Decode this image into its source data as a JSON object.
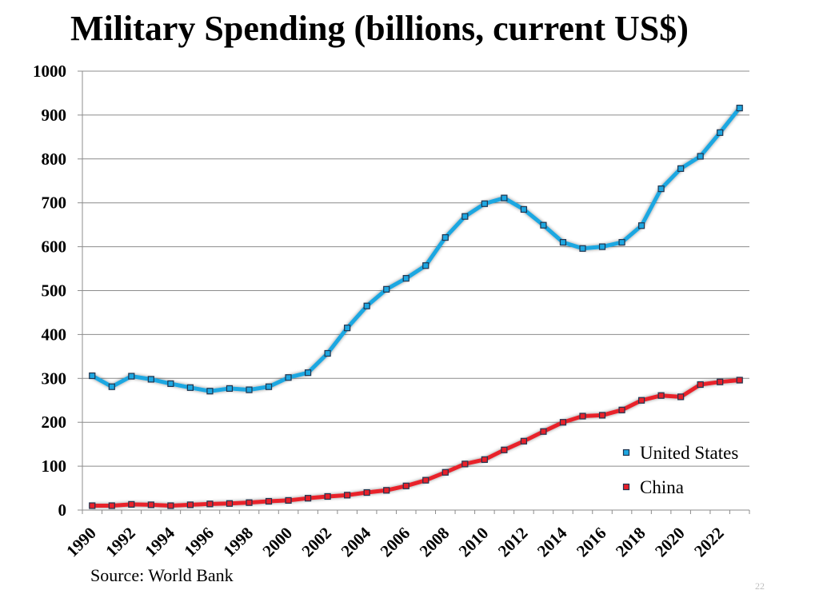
{
  "page_number": "22",
  "source": "Source: World Bank",
  "chart_data": {
    "type": "line",
    "title": "Military Spending (billions, current US$)",
    "xlabel": "",
    "ylabel": "",
    "ylim": [
      0,
      1000
    ],
    "yticks": [
      0,
      100,
      200,
      300,
      400,
      500,
      600,
      700,
      800,
      900,
      1000
    ],
    "grid": true,
    "legend_position": "bottom-right",
    "x": [
      1990,
      1991,
      1992,
      1993,
      1994,
      1995,
      1996,
      1997,
      1998,
      1999,
      2000,
      2001,
      2002,
      2003,
      2004,
      2005,
      2006,
      2007,
      2008,
      2009,
      2010,
      2011,
      2012,
      2013,
      2014,
      2015,
      2016,
      2017,
      2018,
      2019,
      2020,
      2021,
      2022,
      2023
    ],
    "xtick_labels": [
      "1990",
      "1992",
      "1994",
      "1996",
      "1998",
      "2000",
      "2002",
      "2004",
      "2006",
      "2008",
      "2010",
      "2012",
      "2014",
      "2016",
      "2018",
      "2020",
      "2022"
    ],
    "series": [
      {
        "name": "United States",
        "color": "#1ea7e1",
        "values": [
          306,
          281,
          305,
          298,
          288,
          279,
          271,
          277,
          274,
          281,
          302,
          313,
          357,
          415,
          465,
          503,
          528,
          557,
          621,
          669,
          698,
          711,
          685,
          649,
          610,
          596,
          600,
          610,
          648,
          732,
          778,
          806,
          860,
          916
        ]
      },
      {
        "name": "China",
        "color": "#e8202a",
        "values": [
          10,
          10,
          13,
          12,
          10,
          12,
          14,
          15,
          17,
          20,
          22,
          27,
          31,
          34,
          40,
          45,
          55,
          68,
          86,
          105,
          115,
          137,
          157,
          179,
          200,
          214,
          216,
          228,
          250,
          261,
          258,
          286,
          292,
          296
        ]
      }
    ]
  }
}
